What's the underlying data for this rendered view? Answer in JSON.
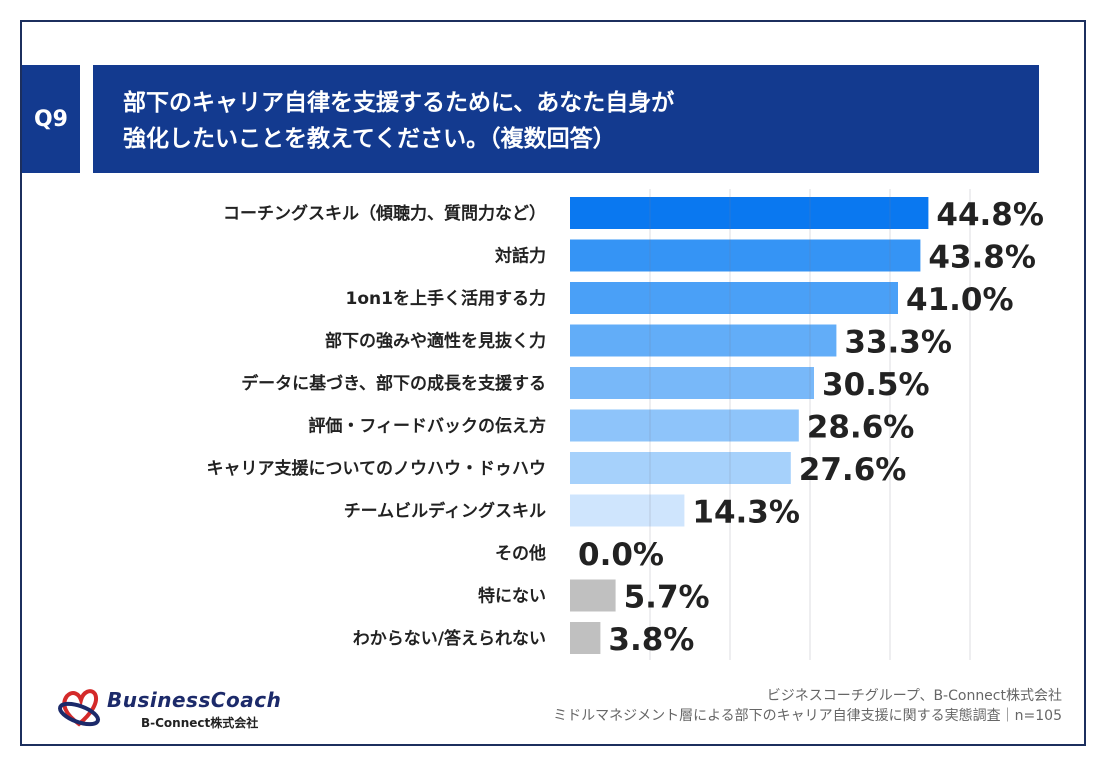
{
  "header": {
    "question_id": "Q9",
    "title_line1": "部下のキャリア自律を支援するために、あなた自身が",
    "title_line2": "強化したいことを教えてください。（複数回答）"
  },
  "chart_data": {
    "type": "bar",
    "orientation": "horizontal",
    "categories": [
      "コーチングスキル（傾聴力、質問力など）",
      "対話力",
      "1on1を上手く活用する力",
      "部下の強みや適性を見抜く力",
      "データに基づき、部下の成長を支援する",
      "評価・フィードバックの伝え方",
      "キャリア支援についてのノウハウ・ドゥハウ",
      "チームビルディングスキル",
      "その他",
      "特にない",
      "わからない/答えられない"
    ],
    "values": [
      44.8,
      43.8,
      41.0,
      33.3,
      30.5,
      28.6,
      27.6,
      14.3,
      0.0,
      5.7,
      3.8
    ],
    "value_labels": [
      "44.8%",
      "43.8%",
      "41.0%",
      "33.3%",
      "30.5%",
      "28.6%",
      "27.6%",
      "14.3%",
      "0.0%",
      "5.7%",
      "3.8%"
    ],
    "colors": [
      "#0a78f0",
      "#3594f5",
      "#4aa0f7",
      "#62adf8",
      "#78b8f9",
      "#8ec4fa",
      "#a6d1fb",
      "#cfe5fd",
      "#cfe5fd",
      "#c0c0c0",
      "#c0c0c0"
    ],
    "xlim": [
      0,
      50
    ],
    "grid": true,
    "grid_step": 10,
    "unit": "%"
  },
  "footer": {
    "source_line1": "ビジネスコーチグループ、B-Connect株式会社",
    "source_line2": "ミドルマネジメント層による部下のキャリア自律支援に関する実態調査｜n=105"
  },
  "logo": {
    "brand": "BusinessCoach",
    "company": "B-Connect株式会社"
  }
}
